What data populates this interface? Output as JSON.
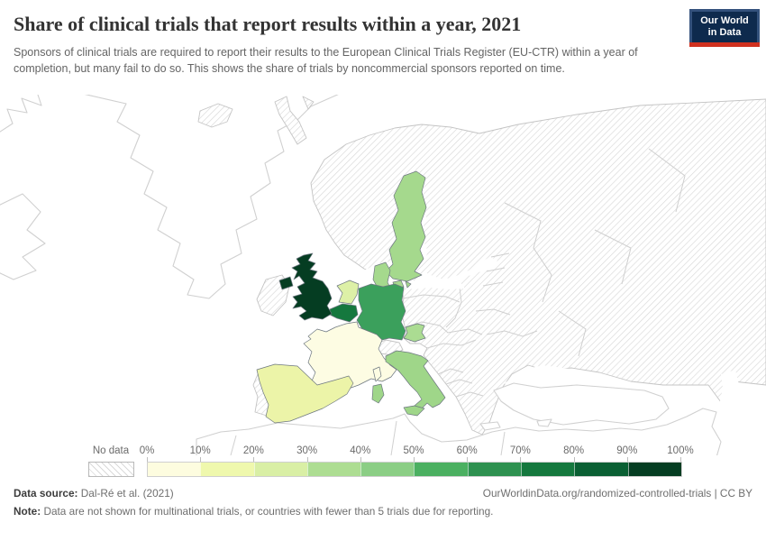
{
  "header": {
    "title": "Share of clinical trials that report results within a year, 2021",
    "subtitle": "Sponsors of clinical trials are required to report their results to the European Clinical Trials Register (EU-CTR) within a year of completion, but many fail to do so. This shows the share of trials by noncommercial sponsors reported on time.",
    "logo": {
      "line1": "Our World",
      "line2": "in Data",
      "bg": "#0e2a4d",
      "accent": "#d0311f"
    }
  },
  "legend": {
    "no_data_label": "No data",
    "ticks": [
      "0%",
      "10%",
      "20%",
      "30%",
      "40%",
      "50%",
      "60%",
      "70%",
      "80%",
      "90%",
      "100%"
    ],
    "bins": [
      {
        "range": "0-10%",
        "color": "#fdfcdf"
      },
      {
        "range": "10-20%",
        "color": "#eff8ad"
      },
      {
        "range": "20-30%",
        "color": "#d9efa5"
      },
      {
        "range": "30-40%",
        "color": "#addd92"
      },
      {
        "range": "40-50%",
        "color": "#8bce85"
      },
      {
        "range": "50-60%",
        "color": "#4bb061"
      },
      {
        "range": "60-70%",
        "color": "#2e9150"
      },
      {
        "range": "70-80%",
        "color": "#15783e"
      },
      {
        "range": "80-90%",
        "color": "#0a5f33"
      },
      {
        "range": "90-100%",
        "color": "#053d22"
      }
    ]
  },
  "chart_data": {
    "type": "choropleth_map",
    "region": "Europe",
    "title": "Share of clinical trials that report results within a year, 2021",
    "unit": "%",
    "legend_position": "bottom",
    "countries": [
      {
        "name": "United Kingdom",
        "value_bin": "90-100%",
        "approx_value": 94,
        "color": "#053d22"
      },
      {
        "name": "Belgium",
        "value_bin": "70-80%",
        "approx_value": 74,
        "color": "#15783e"
      },
      {
        "name": "Germany",
        "value_bin": "50-60%",
        "approx_value": 57,
        "color": "#3ba05c"
      },
      {
        "name": "Italy",
        "value_bin": "30-40%",
        "approx_value": 39,
        "color": "#9fd689"
      },
      {
        "name": "Sweden",
        "value_bin": "30-40%",
        "approx_value": 35,
        "color": "#a5d98d"
      },
      {
        "name": "Denmark",
        "value_bin": "30-40%",
        "approx_value": 35,
        "color": "#a5d98d"
      },
      {
        "name": "Austria",
        "value_bin": "30-40%",
        "approx_value": 34,
        "color": "#abdc92"
      },
      {
        "name": "Netherlands",
        "value_bin": "20-30%",
        "approx_value": 25,
        "color": "#ddf0a7"
      },
      {
        "name": "Spain",
        "value_bin": "10-20%",
        "approx_value": 15,
        "color": "#ecf4a8"
      },
      {
        "name": "France",
        "value_bin": "0-10%",
        "approx_value": 5,
        "color": "#fdfce3"
      }
    ],
    "no_data_countries": [
      "Iceland",
      "Ireland",
      "Portugal",
      "Switzerland",
      "Norway",
      "Finland",
      "Poland",
      "Czechia",
      "Slovakia",
      "Hungary",
      "Romania",
      "Bulgaria",
      "Greece",
      "Estonia",
      "Latvia",
      "Lithuania",
      "Belarus",
      "Ukraine",
      "Russia",
      "Balkan countries"
    ]
  },
  "footer": {
    "source_label": "Data source:",
    "source_value": "Dal-Ré et al. (2021)",
    "attribution": "OurWorldinData.org/randomized-controlled-trials | CC BY",
    "note_label": "Note:",
    "note_value": "Data are not shown for multinational trials, or countries with fewer than 5 trials due for reporting."
  }
}
